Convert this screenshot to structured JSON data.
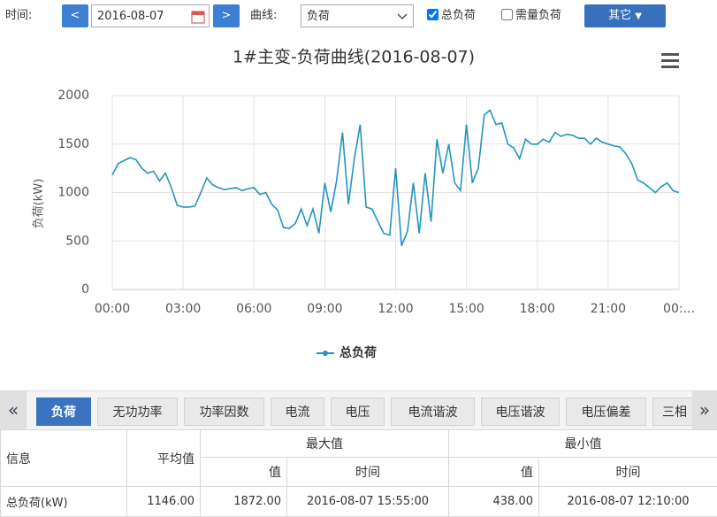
{
  "toolbar": {
    "time_label": "时间:",
    "prev": "<",
    "date": "2016-08-07",
    "next": ">",
    "curve_label": "曲线:",
    "curve": "负荷",
    "checkboxes": [
      {
        "label": "总负荷",
        "checked": true
      },
      {
        "label": "需量负荷",
        "checked": false
      }
    ],
    "other": "其它"
  },
  "chart_data": {
    "type": "line",
    "title": "1#主变-负荷曲线(2016-08-07)",
    "y_label": "负荷(kW)",
    "x": [
      0,
      0.25,
      0.5,
      0.75,
      1,
      1.25,
      1.5,
      1.75,
      2,
      2.25,
      2.5,
      2.75,
      3,
      3.25,
      3.5,
      3.75,
      4,
      4.25,
      4.5,
      4.75,
      5,
      5.25,
      5.5,
      5.75,
      6,
      6.25,
      6.5,
      6.75,
      7,
      7.25,
      7.5,
      7.75,
      8,
      8.25,
      8.5,
      8.75,
      9,
      9.25,
      9.5,
      9.75,
      10,
      10.25,
      10.5,
      10.75,
      11,
      11.25,
      11.5,
      11.75,
      12,
      12.25,
      12.5,
      12.75,
      13,
      13.25,
      13.5,
      13.75,
      14,
      14.25,
      14.5,
      14.75,
      15,
      15.25,
      15.5,
      15.75,
      16,
      16.25,
      16.5,
      16.75,
      17,
      17.25,
      17.5,
      17.75,
      18,
      18.25,
      18.5,
      18.75,
      19,
      19.25,
      19.5,
      19.75,
      20,
      20.25,
      20.5,
      20.75,
      21,
      21.25,
      21.5,
      21.75,
      22,
      22.25,
      22.5,
      22.75,
      23,
      23.25,
      23.5,
      23.75,
      24
    ],
    "series": [
      {
        "name": "总负荷",
        "color": "#2394c0",
        "values": [
          1180,
          1300,
          1330,
          1360,
          1340,
          1250,
          1200,
          1220,
          1120,
          1200,
          1050,
          870,
          850,
          850,
          860,
          1000,
          1150,
          1080,
          1050,
          1030,
          1040,
          1050,
          1020,
          1040,
          1050,
          980,
          1000,
          880,
          820,
          640,
          630,
          680,
          830,
          660,
          830,
          580,
          1100,
          800,
          1120,
          1620,
          880,
          1350,
          1700,
          850,
          830,
          700,
          580,
          560,
          1250,
          450,
          600,
          1100,
          580,
          1200,
          700,
          1550,
          1200,
          1500,
          1100,
          1020,
          1700,
          1100,
          1250,
          1800,
          1850,
          1700,
          1720,
          1500,
          1460,
          1350,
          1550,
          1500,
          1500,
          1550,
          1520,
          1620,
          1580,
          1600,
          1590,
          1560,
          1560,
          1500,
          1560,
          1520,
          1500,
          1480,
          1470,
          1400,
          1300,
          1130,
          1100,
          1050,
          1000,
          1060,
          1100,
          1020,
          1000
        ]
      }
    ],
    "xlim": [
      0,
      24
    ],
    "xticks": [
      {
        "value": 0,
        "label": "00:00"
      },
      {
        "value": 3,
        "label": "03:00"
      },
      {
        "value": 6,
        "label": "06:00"
      },
      {
        "value": 9,
        "label": "09:00"
      },
      {
        "value": 12,
        "label": "12:00"
      },
      {
        "value": 15,
        "label": "15:00"
      },
      {
        "value": 18,
        "label": "18:00"
      },
      {
        "value": 21,
        "label": "21:00"
      },
      {
        "value": 24,
        "label": "00:..."
      }
    ],
    "ylim": [
      0,
      2000
    ],
    "yticks": [
      0,
      500,
      1000,
      1500,
      2000
    ],
    "grid": true,
    "legend": "bottom"
  },
  "tabs": {
    "prev": "«",
    "next": "»",
    "items": [
      "负荷",
      "无功功率",
      "功率因数",
      "电流",
      "电压",
      "电流谐波",
      "电压谐波",
      "电压偏差",
      "三相"
    ],
    "active": 0
  },
  "table": {
    "header": [
      "信息",
      "平均值",
      "最大值",
      "最小值"
    ],
    "subheader": [
      "值",
      "时间",
      "值",
      "时间"
    ],
    "rows": [
      [
        "总负荷(kW)",
        "1146.00",
        "1872.00",
        "2016-08-07 15:55:00",
        "438.00",
        "2016-08-07 12:10:00"
      ]
    ]
  }
}
